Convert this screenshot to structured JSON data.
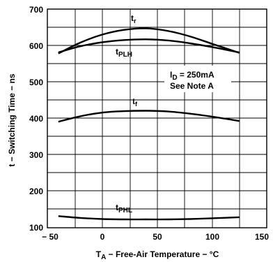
{
  "chart_data": {
    "type": "line",
    "xlabel_main": "T",
    "xlabel_sub": "A",
    "xlabel_rest": " − Free-Air Temperature − °C",
    "ylabel": "t − Switching Time − ns",
    "xlim": [
      -50,
      150
    ],
    "ylim": [
      100,
      700
    ],
    "xticks": [
      -50,
      0,
      50,
      100,
      150
    ],
    "xtick_labels": [
      "− 50",
      "0",
      "50",
      "100",
      "150"
    ],
    "yticks": [
      100,
      200,
      300,
      400,
      500,
      600,
      700
    ],
    "ytick_labels": [
      "100",
      "200",
      "300",
      "400",
      "500",
      "600",
      "700"
    ],
    "grid": true,
    "series": [
      {
        "name_main": "t",
        "name_sub": "r",
        "x": [
          -40,
          -20,
          0,
          20,
          40,
          60,
          80,
          100,
          125
        ],
        "y": [
          578,
          608,
          630,
          643,
          647,
          640,
          625,
          605,
          580
        ]
      },
      {
        "name_main": "t",
        "name_sub": "PLH",
        "x": [
          -40,
          -20,
          0,
          20,
          40,
          60,
          80,
          100,
          125
        ],
        "y": [
          581,
          598,
          609,
          615,
          617,
          614,
          606,
          596,
          581
        ]
      },
      {
        "name_main": "t",
        "name_sub": "f",
        "x": [
          -40,
          -20,
          0,
          20,
          40,
          60,
          80,
          100,
          125
        ],
        "y": [
          391,
          406,
          416,
          420,
          421,
          419,
          413,
          405,
          393
        ]
      },
      {
        "name_main": "t",
        "name_sub": "PHL",
        "x": [
          -40,
          -20,
          0,
          20,
          40,
          60,
          80,
          100,
          125
        ],
        "y": [
          132,
          127,
          124,
          123,
          123,
          123,
          124,
          126,
          129
        ]
      }
    ],
    "annotation": {
      "line1_main": "I",
      "line1_sub": "D",
      "line1_rest": " = 250mA",
      "line2": "See Note A"
    }
  }
}
